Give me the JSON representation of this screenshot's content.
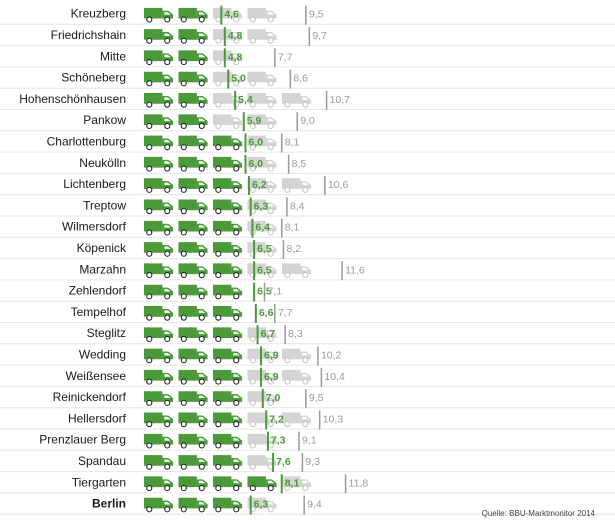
{
  "chart_data": {
    "type": "bar",
    "unit_icon": "truck-icon",
    "categories": [
      "Kreuzberg",
      "Friedrichshain",
      "Mitte",
      "Schöneberg",
      "Hohenschönhausen",
      "Pankow",
      "Charlottenburg",
      "Neukölln",
      "Lichtenberg",
      "Treptow",
      "Wilmersdorf",
      "Köpenick",
      "Marzahn",
      "Zehlendorf",
      "Tempelhof",
      "Steglitz",
      "Wedding",
      "Weißensee",
      "Reinickendorf",
      "Hellersdorf",
      "Prenzlauer Berg",
      "Spandau",
      "Tiergarten",
      "Berlin"
    ],
    "highlight_category": "Berlin",
    "series": [
      {
        "color": "#4a9a3a",
        "values": [
          4.6,
          4.8,
          4.8,
          5.0,
          5.4,
          5.9,
          6.0,
          6.0,
          6.2,
          6.3,
          6.4,
          6.5,
          6.5,
          6.5,
          6.6,
          6.7,
          6.9,
          6.9,
          7.0,
          7.2,
          7.3,
          7.6,
          8.1,
          6.3
        ],
        "labels": [
          "4,6",
          "4,8",
          "4,8",
          "5,0",
          "5,4",
          "5,9",
          "6,0",
          "6,0",
          "6,2",
          "6,3",
          "6,4",
          "6,5",
          "6,5",
          "6,5",
          "6,6",
          "6,7",
          "6,9",
          "6,9",
          "7,0",
          "7,2",
          "7,3",
          "7,6",
          "8,1",
          "6,3"
        ]
      },
      {
        "color": "#bdbdbd",
        "values": [
          9.5,
          9.7,
          7.7,
          8.6,
          10.7,
          9.0,
          8.1,
          8.5,
          10.6,
          8.4,
          8.1,
          8.2,
          11.6,
          7.1,
          7.7,
          8.3,
          10.2,
          10.4,
          9.5,
          10.3,
          9.1,
          9.3,
          11.8,
          9.4
        ],
        "labels": [
          "9,5",
          "9,7",
          "7,7",
          "8,6",
          "10,7",
          "9,0",
          "8,1",
          "8,5",
          "10,6",
          "8,4",
          "8,1",
          "8,2",
          "11,6",
          "7,1",
          "7,7",
          "8,3",
          "10,2",
          "10,4",
          "9,5",
          "10,3",
          "9,1",
          "9,3",
          "11,8",
          "9,4"
        ]
      }
    ],
    "xlim": [
      0,
      12
    ]
  },
  "source": "Quelle: BBU-Marktmonitor 2014"
}
